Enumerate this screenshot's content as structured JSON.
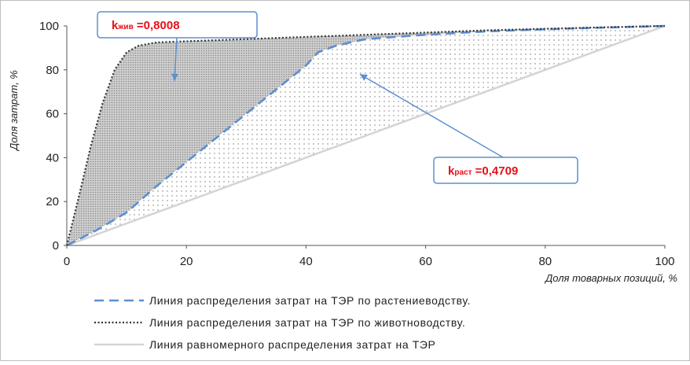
{
  "chart_data": {
    "type": "line",
    "xlabel": "Доля товарных позиций, %",
    "ylabel": "Доля затрат, %",
    "xlim": [
      0,
      100
    ],
    "ylim": [
      0,
      100
    ],
    "xticks": [
      "0",
      "20",
      "40",
      "60",
      "80",
      "100"
    ],
    "yticks": [
      "0",
      "20",
      "40",
      "60",
      "80",
      "100"
    ],
    "grid": false,
    "legend_position": "bottom",
    "series": [
      {
        "name": "Линия распределения затрат на ТЭР по растениеводству.",
        "style": "dashed",
        "color": "#5b8fd0",
        "x": [
          0,
          5,
          10,
          15,
          20,
          25,
          30,
          35,
          40,
          42,
          45,
          50,
          60,
          70,
          80,
          90,
          100
        ],
        "y": [
          0,
          7,
          15,
          27,
          38,
          49,
          60,
          71,
          82,
          88,
          91,
          94,
          96,
          97.5,
          98.5,
          99.3,
          100
        ]
      },
      {
        "name": "Линия распределения затрат на ТЭР по животноводству.",
        "style": "dotted",
        "color": "#333333",
        "x": [
          0,
          2,
          4,
          6,
          8,
          10,
          12,
          15,
          20,
          30,
          40,
          50,
          60,
          70,
          80,
          90,
          100
        ],
        "y": [
          0,
          22,
          45,
          65,
          80,
          88,
          91,
          92.5,
          93,
          94,
          95,
          96,
          97,
          98,
          98.7,
          99.4,
          100
        ]
      },
      {
        "name": "Линия равномерного распределения  затрат на ТЭР",
        "style": "solid",
        "color": "#d4d4d4",
        "x": [
          0,
          100
        ],
        "y": [
          0,
          100
        ]
      }
    ],
    "annotations": [
      {
        "label": "k",
        "sub": "жив",
        "value": " =0,8008",
        "target": [
          18,
          75
        ]
      },
      {
        "label": "k",
        "sub": "раст",
        "value": " =0,4709",
        "target": [
          49,
          78
        ]
      }
    ]
  }
}
